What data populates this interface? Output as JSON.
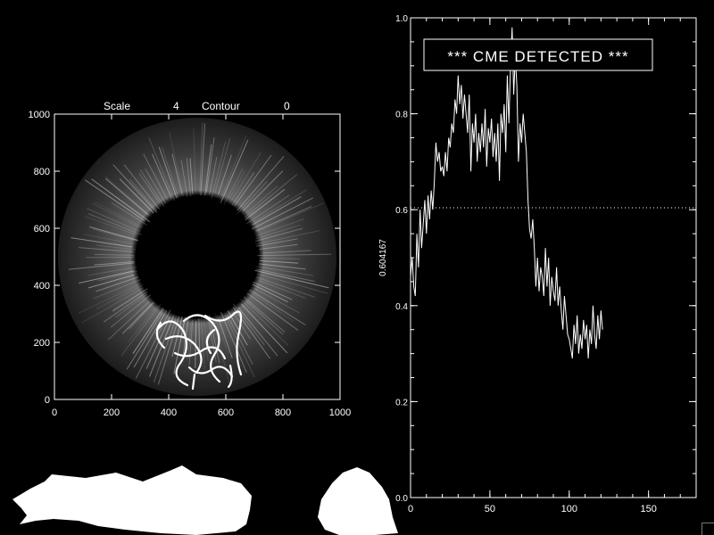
{
  "image_panel": {
    "scale_label": "Scale",
    "scale_value": "4",
    "contour_label": "Contour",
    "contour_value": "0",
    "x_ticks": [
      "0",
      "200",
      "400",
      "600",
      "800",
      "1000"
    ],
    "y_ticks": [
      "0",
      "200",
      "400",
      "600",
      "800",
      "1000"
    ]
  },
  "chart_data": {
    "type": "line",
    "banner": "*** CME DETECTED ***",
    "ylabel": "0.604167",
    "xlim": [
      0,
      180
    ],
    "ylim": [
      0.0,
      1.0
    ],
    "x_ticks": [
      "0",
      "50",
      "100",
      "150"
    ],
    "y_ticks": [
      "0.0",
      "0.2",
      "0.4",
      "0.6",
      "0.8",
      "1.0"
    ],
    "threshold": 0.604167,
    "series": [
      {
        "x_start": 0,
        "x_step": 1,
        "values": [
          0.46,
          0.5,
          0.44,
          0.42,
          0.55,
          0.48,
          0.6,
          0.52,
          0.57,
          0.62,
          0.55,
          0.63,
          0.58,
          0.64,
          0.6,
          0.66,
          0.74,
          0.7,
          0.72,
          0.68,
          0.69,
          0.67,
          0.72,
          0.68,
          0.75,
          0.73,
          0.78,
          0.76,
          0.83,
          0.8,
          0.88,
          0.82,
          0.86,
          0.79,
          0.84,
          0.8,
          0.76,
          0.84,
          0.68,
          0.78,
          0.74,
          0.8,
          0.7,
          0.76,
          0.72,
          0.78,
          0.73,
          0.81,
          0.69,
          0.77,
          0.74,
          0.79,
          0.71,
          0.76,
          0.7,
          0.78,
          0.66,
          0.8,
          0.76,
          0.82,
          0.72,
          0.88,
          0.78,
          0.9,
          0.98,
          0.84,
          0.92,
          0.86,
          0.7,
          0.78,
          0.74,
          0.8,
          0.76,
          0.72,
          0.62,
          0.56,
          0.54,
          0.58,
          0.52,
          0.44,
          0.5,
          0.43,
          0.48,
          0.46,
          0.42,
          0.52,
          0.44,
          0.5,
          0.4,
          0.46,
          0.43,
          0.41,
          0.48,
          0.4,
          0.44,
          0.39,
          0.35,
          0.42,
          0.38,
          0.34,
          0.33,
          0.31,
          0.29,
          0.36,
          0.32,
          0.38,
          0.3,
          0.34,
          0.31,
          0.37,
          0.33,
          0.36,
          0.29,
          0.35,
          0.32,
          0.4,
          0.34,
          0.31,
          0.38,
          0.33,
          0.39,
          0.35
        ]
      }
    ]
  }
}
